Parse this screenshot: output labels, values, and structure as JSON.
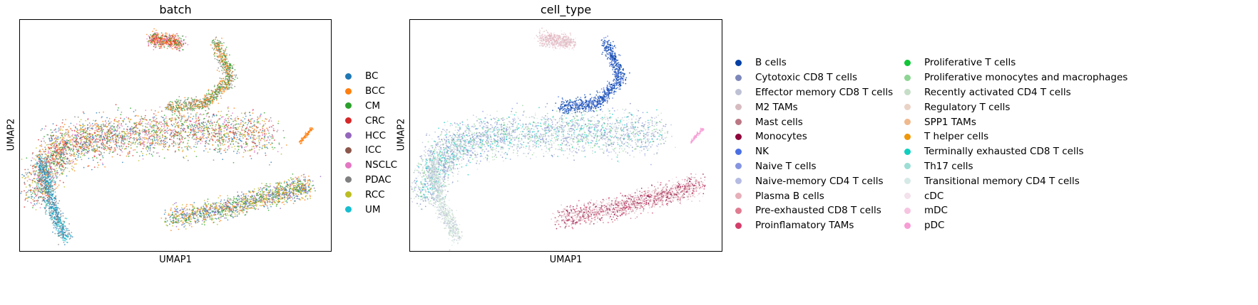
{
  "panels": [
    {
      "title": "batch",
      "xlabel": "UMAP1",
      "ylabel": "UMAP2"
    },
    {
      "title": "cell_type",
      "xlabel": "UMAP1",
      "ylabel": "UMAP2"
    }
  ],
  "chart_data": [
    {
      "type": "scatter",
      "title": "batch",
      "xlabel": "UMAP1",
      "ylabel": "UMAP2",
      "grid": false,
      "legend_position": "right",
      "legend": [
        {
          "name": "BC",
          "color": "#1f77b4"
        },
        {
          "name": "BCC",
          "color": "#ff7f0e"
        },
        {
          "name": "CM",
          "color": "#2ca02c"
        },
        {
          "name": "CRC",
          "color": "#d62728"
        },
        {
          "name": "HCC",
          "color": "#9467bd"
        },
        {
          "name": "ICC",
          "color": "#8c564b"
        },
        {
          "name": "NSCLC",
          "color": "#e377c2"
        },
        {
          "name": "PDAC",
          "color": "#7f7f7f"
        },
        {
          "name": "RCC",
          "color": "#bcbd22"
        },
        {
          "name": "UM",
          "color": "#17becf"
        }
      ]
    },
    {
      "type": "scatter",
      "title": "cell_type",
      "xlabel": "UMAP1",
      "ylabel": "UMAP2",
      "grid": false,
      "legend_position": "right",
      "legend": [
        {
          "name": "B cells",
          "color": "#023fa5"
        },
        {
          "name": "Cytotoxic CD8 T cells",
          "color": "#7d87b9"
        },
        {
          "name": "Effector memory CD8 T cells",
          "color": "#bec1d4"
        },
        {
          "name": "M2 TAMs",
          "color": "#d6bcc0"
        },
        {
          "name": "Mast cells",
          "color": "#bb7784"
        },
        {
          "name": "Monocytes",
          "color": "#8e063b"
        },
        {
          "name": "NK",
          "color": "#4a6fe3"
        },
        {
          "name": "Naive T cells",
          "color": "#8595e1"
        },
        {
          "name": "Naive-memory CD4 T cells",
          "color": "#b5bbe3"
        },
        {
          "name": "Plasma B cells",
          "color": "#e6afb9"
        },
        {
          "name": "Pre-exhausted CD8 T cells",
          "color": "#e07b91"
        },
        {
          "name": "Proinflamatory TAMs",
          "color": "#d33f6a"
        },
        {
          "name": "Proliferative T cells",
          "color": "#11c638"
        },
        {
          "name": "Proliferative monocytes and macrophages",
          "color": "#8dd593"
        },
        {
          "name": "Recently activated CD4 T cells",
          "color": "#c6dec7"
        },
        {
          "name": "Regulatory T cells",
          "color": "#ead3c6"
        },
        {
          "name": "SPP1 TAMs",
          "color": "#f0b98d"
        },
        {
          "name": "T helper cells",
          "color": "#ef9708"
        },
        {
          "name": "Terminally exhausted CD8 T cells",
          "color": "#0fcfc0"
        },
        {
          "name": "Th17 cells",
          "color": "#9cded6"
        },
        {
          "name": "Transitional memory CD4 T cells",
          "color": "#d5eae7"
        },
        {
          "name": "cDC",
          "color": "#f3e1eb"
        },
        {
          "name": "mDC",
          "color": "#f6c4e1"
        },
        {
          "name": "pDC",
          "color": "#f79cd4"
        }
      ]
    }
  ]
}
